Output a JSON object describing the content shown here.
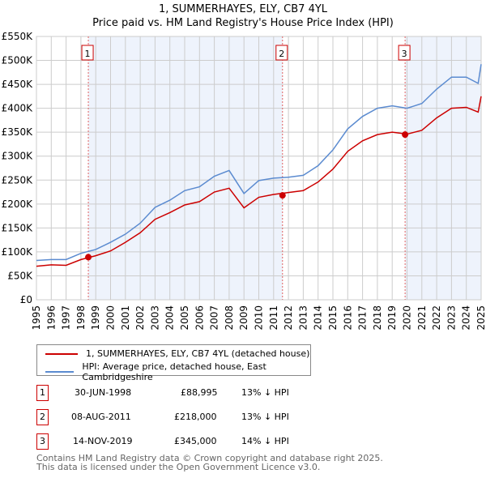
{
  "chart_data": {
    "type": "line",
    "title": "1, SUMMERHAYES, ELY, CB7 4YL",
    "subtitle": "Price paid vs. HM Land Registry's House Price Index (HPI)",
    "xlim": [
      1995,
      2025
    ],
    "ylim": [
      0,
      550000
    ],
    "yticks": [
      0,
      50000,
      100000,
      150000,
      200000,
      250000,
      300000,
      350000,
      400000,
      450000,
      500000,
      550000
    ],
    "ytick_labels": [
      "£0",
      "£50K",
      "£100K",
      "£150K",
      "£200K",
      "£250K",
      "£300K",
      "£350K",
      "£400K",
      "£450K",
      "£500K",
      "£550K"
    ],
    "xticks": [
      "1995",
      "1996",
      "1997",
      "1998",
      "1999",
      "2000",
      "2001",
      "2002",
      "2003",
      "2004",
      "2005",
      "2006",
      "2007",
      "2008",
      "2009",
      "2010",
      "2011",
      "2012",
      "2013",
      "2014",
      "2015",
      "2016",
      "2017",
      "2018",
      "2019",
      "2020",
      "2021",
      "2022",
      "2023",
      "2024",
      "2025"
    ],
    "grid": true,
    "x": [
      1995,
      1996,
      1997,
      1998,
      1999,
      2000,
      2001,
      2002,
      2003,
      2004,
      2005,
      2006,
      2007,
      2008,
      2009,
      2010,
      2011,
      2012,
      2013,
      2014,
      2015,
      2016,
      2017,
      2018,
      2019,
      2020,
      2021,
      2022,
      2023,
      2024,
      2024.8,
      2025
    ],
    "series": [
      {
        "name": "1, SUMMERHAYES, ELY, CB7 4YL (detached house)",
        "color": "#cc0000",
        "values": [
          70000,
          73000,
          72000,
          84000,
          92000,
          102000,
          120000,
          140000,
          168000,
          182000,
          198000,
          205000,
          225000,
          233000,
          192000,
          214000,
          220000,
          224000,
          228000,
          246000,
          273000,
          310000,
          332000,
          345000,
          350000,
          346000,
          354000,
          380000,
          400000,
          402000,
          392000,
          425000
        ]
      },
      {
        "name": "HPI: Average price, detached house, East Cambridgeshire",
        "color": "#5b8bd0",
        "values": [
          82000,
          84000,
          84000,
          97000,
          105000,
          120000,
          137000,
          160000,
          193000,
          208000,
          228000,
          236000,
          258000,
          270000,
          222000,
          249000,
          254000,
          256000,
          260000,
          280000,
          313000,
          357000,
          383000,
          400000,
          405000,
          400000,
          410000,
          440000,
          465000,
          465000,
          452000,
          492000
        ]
      }
    ],
    "sales": [
      {
        "label": "1",
        "x": 1998.5,
        "value": 88995,
        "date": "30-JUN-1998",
        "price": "£88,995",
        "hpi": "13% ↓ HPI"
      },
      {
        "label": "2",
        "x": 2011.6,
        "value": 218000,
        "date": "08-AUG-2011",
        "price": "£218,000",
        "hpi": "13% ↓ HPI"
      },
      {
        "label": "3",
        "x": 2019.87,
        "value": 345000,
        "date": "14-NOV-2019",
        "price": "£345,000",
        "hpi": "14% ↓ HPI"
      }
    ],
    "shade_color": "#eef3fc",
    "legend_position": "below"
  },
  "footer": [
    "Contains HM Land Registry data © Crown copyright and database right 2025.",
    "This data is licensed under the Open Government Licence v3.0."
  ]
}
